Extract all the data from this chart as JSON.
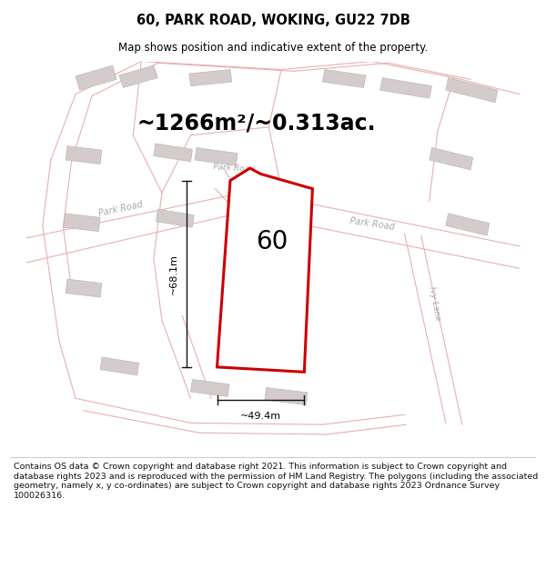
{
  "title": "60, PARK ROAD, WOKING, GU22 7DB",
  "subtitle": "Map shows position and indicative extent of the property.",
  "footer": "Contains OS data © Crown copyright and database right 2021. This information is subject to Crown copyright and database rights 2023 and is reproduced with the permission of HM Land Registry. The polygons (including the associated geometry, namely x, y co-ordinates) are subject to Crown copyright and database rights 2023 Ordnance Survey 100026316.",
  "area_label": "~1266m²/~0.313ac.",
  "number_label": "60",
  "dim_height": "~68.1m",
  "dim_width": "~49.4m",
  "bg_color": "#ffffff",
  "map_bg": "#f7f0f0",
  "title_fontsize": 10.5,
  "subtitle_fontsize": 8.5,
  "footer_fontsize": 6.8,
  "area_fontsize": 17,
  "number_fontsize": 20,
  "dim_fontsize": 8,
  "road_label_fontsize": 7,
  "figsize": [
    6.0,
    6.25
  ],
  "dpi": 100
}
